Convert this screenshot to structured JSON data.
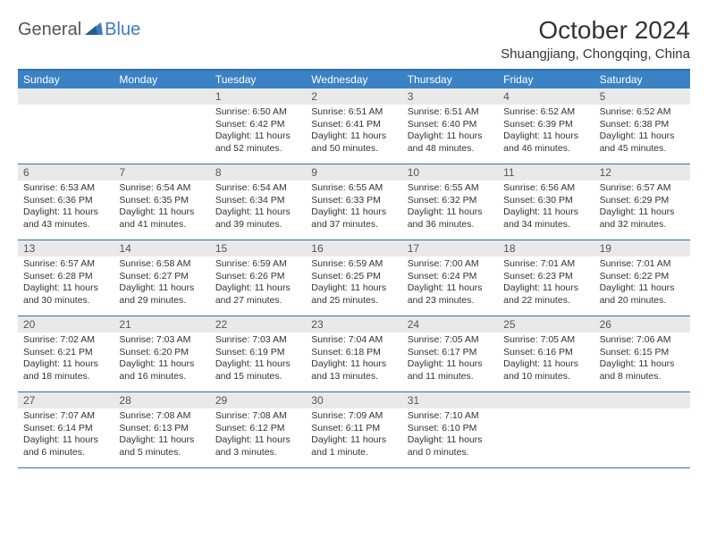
{
  "logo": {
    "general": "General",
    "blue": "Blue"
  },
  "header": {
    "month_title": "October 2024",
    "location": "Shuangjiang, Chongqing, China"
  },
  "colors": {
    "header_bar": "#3b82c4",
    "border": "#2f6faf",
    "daynum_bg": "#e9e9e9",
    "logo_blue": "#3b7bbf"
  },
  "daynames": [
    "Sunday",
    "Monday",
    "Tuesday",
    "Wednesday",
    "Thursday",
    "Friday",
    "Saturday"
  ],
  "weeks": [
    [
      {
        "day": "",
        "sunrise": "",
        "sunset": "",
        "daylight": ""
      },
      {
        "day": "",
        "sunrise": "",
        "sunset": "",
        "daylight": ""
      },
      {
        "day": "1",
        "sunrise": "Sunrise: 6:50 AM",
        "sunset": "Sunset: 6:42 PM",
        "daylight": "Daylight: 11 hours and 52 minutes."
      },
      {
        "day": "2",
        "sunrise": "Sunrise: 6:51 AM",
        "sunset": "Sunset: 6:41 PM",
        "daylight": "Daylight: 11 hours and 50 minutes."
      },
      {
        "day": "3",
        "sunrise": "Sunrise: 6:51 AM",
        "sunset": "Sunset: 6:40 PM",
        "daylight": "Daylight: 11 hours and 48 minutes."
      },
      {
        "day": "4",
        "sunrise": "Sunrise: 6:52 AM",
        "sunset": "Sunset: 6:39 PM",
        "daylight": "Daylight: 11 hours and 46 minutes."
      },
      {
        "day": "5",
        "sunrise": "Sunrise: 6:52 AM",
        "sunset": "Sunset: 6:38 PM",
        "daylight": "Daylight: 11 hours and 45 minutes."
      }
    ],
    [
      {
        "day": "6",
        "sunrise": "Sunrise: 6:53 AM",
        "sunset": "Sunset: 6:36 PM",
        "daylight": "Daylight: 11 hours and 43 minutes."
      },
      {
        "day": "7",
        "sunrise": "Sunrise: 6:54 AM",
        "sunset": "Sunset: 6:35 PM",
        "daylight": "Daylight: 11 hours and 41 minutes."
      },
      {
        "day": "8",
        "sunrise": "Sunrise: 6:54 AM",
        "sunset": "Sunset: 6:34 PM",
        "daylight": "Daylight: 11 hours and 39 minutes."
      },
      {
        "day": "9",
        "sunrise": "Sunrise: 6:55 AM",
        "sunset": "Sunset: 6:33 PM",
        "daylight": "Daylight: 11 hours and 37 minutes."
      },
      {
        "day": "10",
        "sunrise": "Sunrise: 6:55 AM",
        "sunset": "Sunset: 6:32 PM",
        "daylight": "Daylight: 11 hours and 36 minutes."
      },
      {
        "day": "11",
        "sunrise": "Sunrise: 6:56 AM",
        "sunset": "Sunset: 6:30 PM",
        "daylight": "Daylight: 11 hours and 34 minutes."
      },
      {
        "day": "12",
        "sunrise": "Sunrise: 6:57 AM",
        "sunset": "Sunset: 6:29 PM",
        "daylight": "Daylight: 11 hours and 32 minutes."
      }
    ],
    [
      {
        "day": "13",
        "sunrise": "Sunrise: 6:57 AM",
        "sunset": "Sunset: 6:28 PM",
        "daylight": "Daylight: 11 hours and 30 minutes."
      },
      {
        "day": "14",
        "sunrise": "Sunrise: 6:58 AM",
        "sunset": "Sunset: 6:27 PM",
        "daylight": "Daylight: 11 hours and 29 minutes."
      },
      {
        "day": "15",
        "sunrise": "Sunrise: 6:59 AM",
        "sunset": "Sunset: 6:26 PM",
        "daylight": "Daylight: 11 hours and 27 minutes."
      },
      {
        "day": "16",
        "sunrise": "Sunrise: 6:59 AM",
        "sunset": "Sunset: 6:25 PM",
        "daylight": "Daylight: 11 hours and 25 minutes."
      },
      {
        "day": "17",
        "sunrise": "Sunrise: 7:00 AM",
        "sunset": "Sunset: 6:24 PM",
        "daylight": "Daylight: 11 hours and 23 minutes."
      },
      {
        "day": "18",
        "sunrise": "Sunrise: 7:01 AM",
        "sunset": "Sunset: 6:23 PM",
        "daylight": "Daylight: 11 hours and 22 minutes."
      },
      {
        "day": "19",
        "sunrise": "Sunrise: 7:01 AM",
        "sunset": "Sunset: 6:22 PM",
        "daylight": "Daylight: 11 hours and 20 minutes."
      }
    ],
    [
      {
        "day": "20",
        "sunrise": "Sunrise: 7:02 AM",
        "sunset": "Sunset: 6:21 PM",
        "daylight": "Daylight: 11 hours and 18 minutes."
      },
      {
        "day": "21",
        "sunrise": "Sunrise: 7:03 AM",
        "sunset": "Sunset: 6:20 PM",
        "daylight": "Daylight: 11 hours and 16 minutes."
      },
      {
        "day": "22",
        "sunrise": "Sunrise: 7:03 AM",
        "sunset": "Sunset: 6:19 PM",
        "daylight": "Daylight: 11 hours and 15 minutes."
      },
      {
        "day": "23",
        "sunrise": "Sunrise: 7:04 AM",
        "sunset": "Sunset: 6:18 PM",
        "daylight": "Daylight: 11 hours and 13 minutes."
      },
      {
        "day": "24",
        "sunrise": "Sunrise: 7:05 AM",
        "sunset": "Sunset: 6:17 PM",
        "daylight": "Daylight: 11 hours and 11 minutes."
      },
      {
        "day": "25",
        "sunrise": "Sunrise: 7:05 AM",
        "sunset": "Sunset: 6:16 PM",
        "daylight": "Daylight: 11 hours and 10 minutes."
      },
      {
        "day": "26",
        "sunrise": "Sunrise: 7:06 AM",
        "sunset": "Sunset: 6:15 PM",
        "daylight": "Daylight: 11 hours and 8 minutes."
      }
    ],
    [
      {
        "day": "27",
        "sunrise": "Sunrise: 7:07 AM",
        "sunset": "Sunset: 6:14 PM",
        "daylight": "Daylight: 11 hours and 6 minutes."
      },
      {
        "day": "28",
        "sunrise": "Sunrise: 7:08 AM",
        "sunset": "Sunset: 6:13 PM",
        "daylight": "Daylight: 11 hours and 5 minutes."
      },
      {
        "day": "29",
        "sunrise": "Sunrise: 7:08 AM",
        "sunset": "Sunset: 6:12 PM",
        "daylight": "Daylight: 11 hours and 3 minutes."
      },
      {
        "day": "30",
        "sunrise": "Sunrise: 7:09 AM",
        "sunset": "Sunset: 6:11 PM",
        "daylight": "Daylight: 11 hours and 1 minute."
      },
      {
        "day": "31",
        "sunrise": "Sunrise: 7:10 AM",
        "sunset": "Sunset: 6:10 PM",
        "daylight": "Daylight: 11 hours and 0 minutes."
      },
      {
        "day": "",
        "sunrise": "",
        "sunset": "",
        "daylight": ""
      },
      {
        "day": "",
        "sunrise": "",
        "sunset": "",
        "daylight": ""
      }
    ]
  ]
}
